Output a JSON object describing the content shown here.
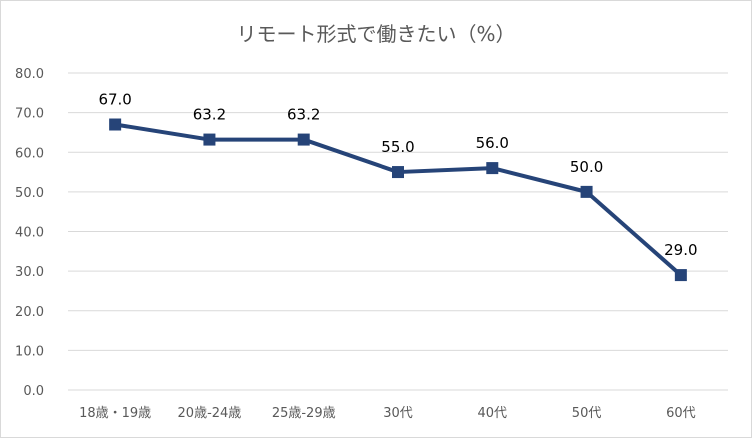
{
  "chart_data": {
    "type": "line",
    "title": "リモート形式で働きたい（%）",
    "categories": [
      "18歳・19歳",
      "20歳-24歳",
      "25歳-29歳",
      "30代",
      "40代",
      "50代",
      "60代"
    ],
    "series": [
      {
        "values": [
          67.0,
          63.2,
          63.2,
          55.0,
          56.0,
          50.0,
          29.0
        ],
        "labels": [
          "67.0",
          "63.2",
          "63.2",
          "55.0",
          "56.0",
          "50.0",
          "29.0"
        ],
        "color": "#264478",
        "marker": "square"
      }
    ],
    "y_ticks": [
      "0.0",
      "10.0",
      "20.0",
      "30.0",
      "40.0",
      "50.0",
      "60.0",
      "70.0",
      "80.0"
    ],
    "ylim": [
      0,
      80
    ],
    "grid": true,
    "legend": "none",
    "gridline_color": "#d9d9d9"
  }
}
